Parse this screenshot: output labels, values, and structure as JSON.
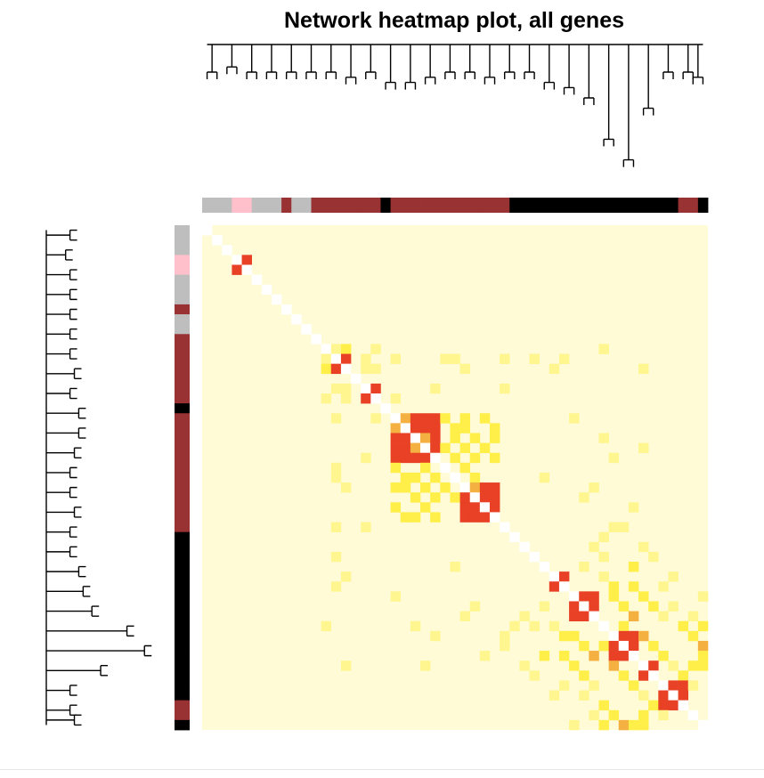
{
  "chart_data": {
    "type": "heatmap",
    "title": "Network heatmap plot, all genes",
    "n_genes": 51,
    "module_colors": [
      "grey",
      "grey",
      "grey",
      "pink",
      "pink",
      "grey",
      "grey",
      "grey",
      "brown",
      "grey",
      "grey",
      "brown",
      "brown",
      "brown",
      "brown",
      "brown",
      "brown",
      "brown",
      "black",
      "brown",
      "brown",
      "brown",
      "brown",
      "brown",
      "brown",
      "brown",
      "brown",
      "brown",
      "brown",
      "brown",
      "brown",
      "black",
      "black",
      "black",
      "black",
      "black",
      "black",
      "black",
      "black",
      "black",
      "black",
      "black",
      "black",
      "black",
      "black",
      "black",
      "black",
      "black",
      "brown",
      "brown",
      "black"
    ],
    "palette": {
      "grey": "#bebebe",
      "pink": "#ffc0cb",
      "brown": "#993333",
      "black": "#000000",
      "background": "#fffbd7",
      "diagonal": "#ffffff",
      "low": "#fff68f",
      "mid": "#ffef48",
      "mid_high": "#f4b040",
      "high": "#e84125"
    },
    "blocks": [
      {
        "start": 3,
        "end": 4,
        "level": "high"
      },
      {
        "start": 13,
        "end": 14,
        "level": "high"
      },
      {
        "start": 16,
        "end": 17,
        "level": "high"
      },
      {
        "start": 19,
        "end": 23,
        "level": "high"
      },
      {
        "start": 26,
        "end": 29,
        "level": "high"
      },
      {
        "start": 35,
        "end": 36,
        "level": "high"
      },
      {
        "start": 37,
        "end": 39,
        "level": "high"
      },
      {
        "start": 41,
        "end": 43,
        "level": "high"
      },
      {
        "start": 44,
        "end": 45,
        "level": "high"
      },
      {
        "start": 46,
        "end": 48,
        "level": "high"
      }
    ],
    "weak_links": [
      [
        12,
        13,
        "low"
      ],
      [
        12,
        14,
        "mid"
      ],
      [
        13,
        16,
        "low"
      ],
      [
        14,
        16,
        "low"
      ],
      [
        14,
        17,
        "low"
      ],
      [
        12,
        17,
        "low"
      ],
      [
        13,
        19,
        "low"
      ],
      [
        16,
        23,
        "low"
      ],
      [
        17,
        19,
        "low"
      ],
      [
        13,
        24,
        "low"
      ],
      [
        13,
        25,
        "low"
      ],
      [
        14,
        26,
        "low"
      ],
      [
        13,
        30,
        "low"
      ],
      [
        16,
        30,
        "low"
      ],
      [
        13,
        36,
        "low"
      ],
      [
        12,
        40,
        "low"
      ],
      [
        14,
        44,
        "low"
      ],
      [
        19,
        26,
        "mid"
      ],
      [
        20,
        26,
        "mid"
      ],
      [
        21,
        27,
        "mid"
      ],
      [
        22,
        28,
        "mid"
      ],
      [
        23,
        27,
        "mid"
      ],
      [
        19,
        28,
        "mid"
      ],
      [
        20,
        29,
        "mid"
      ],
      [
        21,
        29,
        "mid"
      ],
      [
        22,
        26,
        "mid"
      ],
      [
        23,
        29,
        "mid"
      ],
      [
        24,
        26,
        "mid"
      ],
      [
        25,
        27,
        "mid"
      ],
      [
        19,
        24,
        "mid"
      ],
      [
        20,
        25,
        "mid"
      ],
      [
        22,
        24,
        "mid"
      ],
      [
        21,
        25,
        "mid"
      ],
      [
        23,
        25,
        "mid"
      ],
      [
        13,
        33,
        "low"
      ],
      [
        14,
        35,
        "low"
      ],
      [
        21,
        40,
        "low"
      ],
      [
        23,
        41,
        "low"
      ],
      [
        22,
        44,
        "low"
      ],
      [
        19,
        37,
        "low"
      ],
      [
        27,
        38,
        "low"
      ],
      [
        28,
        43,
        "low"
      ],
      [
        25,
        34,
        "low"
      ],
      [
        26,
        39,
        "low"
      ],
      [
        36,
        41,
        "mid"
      ],
      [
        37,
        41,
        "mid"
      ],
      [
        38,
        42,
        "mid"
      ],
      [
        39,
        43,
        "mid_high"
      ],
      [
        36,
        43,
        "mid"
      ],
      [
        37,
        44,
        "mid"
      ],
      [
        38,
        45,
        "mid"
      ],
      [
        39,
        46,
        "low"
      ],
      [
        40,
        42,
        "mid"
      ],
      [
        41,
        44,
        "mid_high"
      ],
      [
        42,
        45,
        "mid"
      ],
      [
        43,
        46,
        "mid"
      ],
      [
        44,
        47,
        "low"
      ],
      [
        45,
        48,
        "mid"
      ],
      [
        46,
        49,
        "low"
      ],
      [
        42,
        50,
        "mid_high"
      ],
      [
        41,
        49,
        "mid"
      ],
      [
        43,
        50,
        "mid"
      ],
      [
        40,
        48,
        "mid"
      ],
      [
        38,
        47,
        "low"
      ],
      [
        36,
        46,
        "low"
      ],
      [
        35,
        40,
        "low"
      ],
      [
        33,
        40,
        "low"
      ],
      [
        34,
        38,
        "low"
      ],
      [
        32,
        39,
        "low"
      ],
      [
        31,
        40,
        "low"
      ],
      [
        30,
        41,
        "low"
      ],
      [
        30,
        42,
        "low"
      ],
      [
        35,
        47,
        "low"
      ],
      [
        39,
        49,
        "low"
      ],
      [
        40,
        50,
        "mid"
      ],
      [
        44,
        50,
        "mid"
      ],
      [
        33,
        45,
        "low"
      ],
      [
        34,
        43,
        "mid"
      ],
      [
        32,
        44,
        "low"
      ],
      [
        37,
        50,
        "low"
      ],
      [
        44,
        49,
        "mid"
      ]
    ],
    "column_tree": [
      [
        0,
        1,
        0.05
      ],
      [
        2,
        3,
        0.04
      ],
      [
        4,
        5,
        0.05
      ],
      [
        6,
        7,
        0.05
      ],
      [
        8,
        9,
        0.05
      ],
      [
        10,
        11,
        0.05
      ],
      [
        12,
        13,
        0.05
      ],
      [
        14,
        15,
        0.06
      ],
      [
        16,
        17,
        0.05
      ],
      [
        18,
        19,
        0.07
      ],
      [
        20,
        21,
        0.07
      ],
      [
        22,
        23,
        0.06
      ],
      [
        24,
        25,
        0.05
      ],
      [
        26,
        27,
        0.05
      ],
      [
        28,
        29,
        0.06
      ],
      [
        30,
        31,
        0.05
      ],
      [
        32,
        33,
        0.05
      ],
      [
        34,
        35,
        0.07
      ],
      [
        36,
        37,
        0.08
      ],
      [
        38,
        39,
        0.1
      ],
      [
        40,
        41,
        0.18
      ],
      [
        42,
        43,
        0.22
      ],
      [
        44,
        45,
        0.12
      ],
      [
        46,
        47,
        0.05
      ],
      [
        48,
        49,
        0.05
      ],
      [
        49,
        50,
        0.06
      ]
    ]
  }
}
